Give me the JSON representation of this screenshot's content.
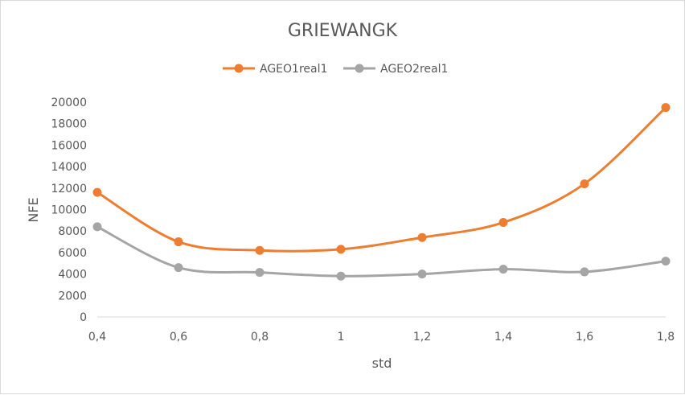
{
  "chart_data": {
    "type": "line",
    "title": "GRIEWANGK",
    "xlabel": "std",
    "ylabel": "NFE",
    "categories": [
      "0,4",
      "0,6",
      "0,8",
      "1",
      "1,2",
      "1,4",
      "1,6",
      "1,8"
    ],
    "ylim": [
      0,
      20000
    ],
    "yticks": [
      0,
      2000,
      4000,
      6000,
      8000,
      10000,
      12000,
      14000,
      16000,
      18000,
      20000
    ],
    "grid": false,
    "legend_position": "top",
    "series": [
      {
        "name": "AGEO1real1",
        "color": "#ed7d31",
        "values": [
          11600,
          7000,
          6200,
          6300,
          7400,
          8800,
          12400,
          19500
        ]
      },
      {
        "name": "AGEO2real1",
        "color": "#a5a5a5",
        "values": [
          8400,
          4600,
          4150,
          3800,
          4000,
          4450,
          4200,
          5200
        ]
      }
    ]
  }
}
